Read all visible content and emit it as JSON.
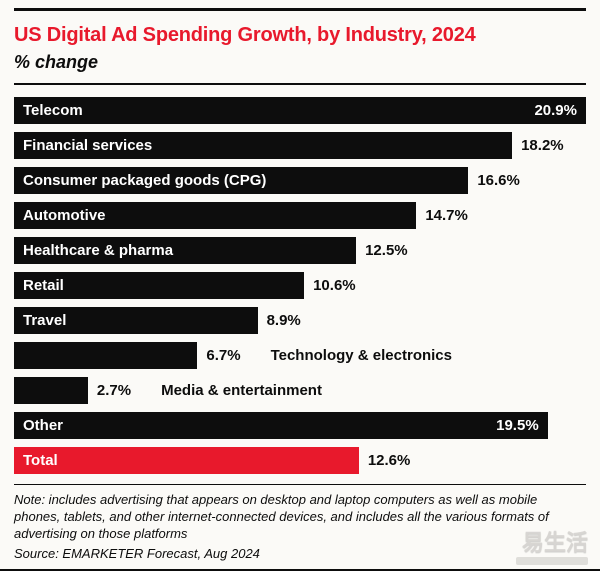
{
  "chart_data": {
    "type": "bar",
    "orientation": "horizontal",
    "title": "US Digital Ad Spending Growth, by Industry, 2024",
    "subtitle": "% change",
    "xlabel": "",
    "ylabel": "",
    "xlim": [
      0,
      20.9
    ],
    "grid": false,
    "legend": false,
    "value_suffix": "%",
    "bar_color": "#0d0d0d",
    "highlight_color": "#e8192c",
    "categories": [
      "Telecom",
      "Financial services",
      "Consumer packaged goods (CPG)",
      "Automotive",
      "Healthcare & pharma",
      "Retail",
      "Travel",
      "Technology & electronics",
      "Media & entertainment",
      "Other",
      "Total"
    ],
    "values": [
      20.9,
      18.2,
      16.6,
      14.7,
      12.5,
      10.6,
      8.9,
      6.7,
      2.7,
      19.5,
      12.6
    ],
    "bars": [
      {
        "label": "Telecom",
        "value": 20.9,
        "value_label": "20.9%",
        "label_inside": true,
        "value_inside": true,
        "color": "#0d0d0d"
      },
      {
        "label": "Financial services",
        "value": 18.2,
        "value_label": "18.2%",
        "label_inside": true,
        "value_inside": false,
        "color": "#0d0d0d"
      },
      {
        "label": "Consumer packaged goods (CPG)",
        "value": 16.6,
        "value_label": "16.6%",
        "label_inside": true,
        "value_inside": false,
        "color": "#0d0d0d"
      },
      {
        "label": "Automotive",
        "value": 14.7,
        "value_label": "14.7%",
        "label_inside": true,
        "value_inside": false,
        "color": "#0d0d0d"
      },
      {
        "label": "Healthcare & pharma",
        "value": 12.5,
        "value_label": "12.5%",
        "label_inside": true,
        "value_inside": false,
        "color": "#0d0d0d"
      },
      {
        "label": "Retail",
        "value": 10.6,
        "value_label": "10.6%",
        "label_inside": true,
        "value_inside": false,
        "color": "#0d0d0d"
      },
      {
        "label": "Travel",
        "value": 8.9,
        "value_label": "8.9%",
        "label_inside": true,
        "value_inside": false,
        "color": "#0d0d0d"
      },
      {
        "label": "Technology & electronics",
        "value": 6.7,
        "value_label": "6.7%",
        "label_inside": false,
        "value_inside": false,
        "color": "#0d0d0d"
      },
      {
        "label": "Media & entertainment",
        "value": 2.7,
        "value_label": "2.7%",
        "label_inside": false,
        "value_inside": false,
        "color": "#0d0d0d"
      },
      {
        "label": "Other",
        "value": 19.5,
        "value_label": "19.5%",
        "label_inside": true,
        "value_inside": true,
        "color": "#0d0d0d"
      },
      {
        "label": "Total",
        "value": 12.6,
        "value_label": "12.6%",
        "label_inside": true,
        "value_inside": false,
        "color": "#e8192c"
      }
    ]
  },
  "header": {
    "title_color": "#e8192c"
  },
  "footer": {
    "note": "Note: includes advertising that appears on desktop and laptop computers as well as mobile phones, tablets, and other internet-connected devices, and includes all the various formats of advertising on those platforms",
    "source": "Source: EMARKETER Forecast, Aug 2024"
  },
  "watermark": {
    "text": "易生活"
  }
}
